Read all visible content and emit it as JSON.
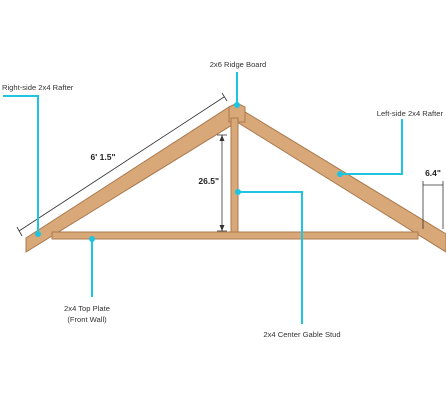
{
  "labels": {
    "ridge_board": "2x6 Ridge Board",
    "right_rafter": "Right-side 2x4 Rafter",
    "left_rafter": "Left-side 2x4 Rafter",
    "top_plate_line1": "2x4 Top Plate",
    "top_plate_line2": "(Front Wall)",
    "center_stud": "2x4 Center Gable Stud"
  },
  "dimensions": {
    "rafter_length": "6' 1.5\"",
    "stud_height": "26.5\"",
    "overhang": "6.4\""
  },
  "colors": {
    "wood_fill": "#d9a878",
    "wood_stroke": "#a9784e",
    "callout": "#1ec4e0",
    "dimension": "#333333"
  }
}
